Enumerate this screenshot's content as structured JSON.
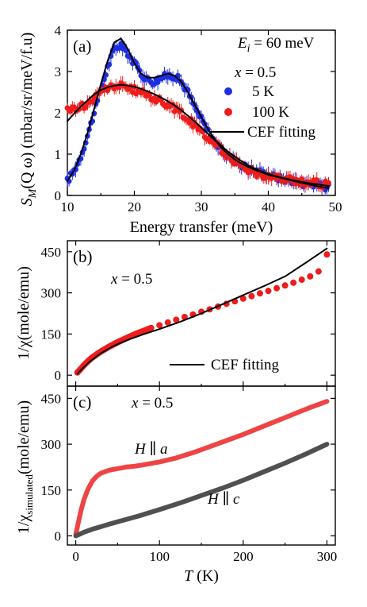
{
  "chart_data": [
    {
      "type": "scatter",
      "panel_label": "(a)",
      "xlabel": "Energy transfer (meV)",
      "ylabel_main": "S",
      "ylabel_sub": "M",
      "ylabel_rest": "(Q ω) (mbar/sr/meV/f.u)",
      "xlim": [
        10,
        50
      ],
      "ylim": [
        0,
        4
      ],
      "xticks": [
        "10",
        "20",
        "30",
        "40",
        "50"
      ],
      "yticks": [
        "0",
        "1",
        "2",
        "3",
        "4"
      ],
      "annotations": {
        "ei_main": "E",
        "ei_sub": "i",
        "ei_rest": " = 60 meV",
        "x_var": "x",
        "x_rest": " = 0.5"
      },
      "legend": [
        {
          "label": "5 K",
          "color": "#1f2ee0",
          "kind": "marker"
        },
        {
          "label": "100 K",
          "color": "#ee1c1c",
          "kind": "marker"
        },
        {
          "label": "CEF fitting",
          "color": "#000000",
          "kind": "line"
        }
      ],
      "series": [
        {
          "name": "5 K",
          "color": "#1f2ee0",
          "x": [
            10,
            11,
            12,
            13,
            14,
            15,
            16,
            17,
            18,
            19,
            20,
            21,
            22,
            23,
            24,
            25,
            26,
            27,
            28,
            29,
            30,
            31,
            32,
            33,
            34,
            35,
            36,
            37,
            38,
            39,
            40,
            41,
            42,
            43,
            44,
            45,
            46,
            47,
            48,
            49
          ],
          "y": [
            0.35,
            0.6,
            0.95,
            1.45,
            2.0,
            2.55,
            3.1,
            3.55,
            3.65,
            3.45,
            3.2,
            2.95,
            2.8,
            2.75,
            2.85,
            2.9,
            2.9,
            2.75,
            2.5,
            2.15,
            1.85,
            1.55,
            1.3,
            1.1,
            0.95,
            0.85,
            0.75,
            0.65,
            0.6,
            0.55,
            0.5,
            0.45,
            0.4,
            0.38,
            0.35,
            0.3,
            0.28,
            0.25,
            0.22,
            0.2
          ]
        },
        {
          "name": "100 K",
          "color": "#ee1c1c",
          "x": [
            10,
            11,
            12,
            13,
            14,
            15,
            16,
            17,
            18,
            19,
            20,
            21,
            22,
            23,
            24,
            25,
            26,
            27,
            28,
            29,
            30,
            31,
            32,
            33,
            34,
            35,
            36,
            37,
            38,
            39,
            40,
            41,
            42,
            43,
            44,
            45,
            46,
            47,
            48,
            49
          ],
          "y": [
            2.05,
            2.1,
            2.15,
            2.2,
            2.35,
            2.5,
            2.6,
            2.65,
            2.65,
            2.6,
            2.55,
            2.5,
            2.42,
            2.35,
            2.28,
            2.2,
            2.1,
            2.0,
            1.85,
            1.7,
            1.55,
            1.4,
            1.25,
            1.1,
            0.95,
            0.82,
            0.72,
            0.62,
            0.55,
            0.5,
            0.45,
            0.42,
            0.4,
            0.38,
            0.35,
            0.33,
            0.32,
            0.3,
            0.28,
            0.3
          ]
        },
        {
          "name": "CEF fitting 5 K",
          "type": "line",
          "color": "#000000",
          "x": [
            10,
            11,
            12,
            13,
            14,
            15,
            16,
            17,
            18,
            19,
            20,
            21,
            22,
            23,
            24,
            25,
            26,
            27,
            28,
            29,
            30,
            31,
            32,
            33,
            34,
            35,
            36,
            37,
            38,
            39,
            40,
            42,
            44,
            46,
            48,
            49
          ],
          "y": [
            0.35,
            0.6,
            1.0,
            1.5,
            2.1,
            2.7,
            3.25,
            3.7,
            3.8,
            3.55,
            3.2,
            2.95,
            2.85,
            2.85,
            2.9,
            2.95,
            2.9,
            2.75,
            2.5,
            2.2,
            1.9,
            1.6,
            1.35,
            1.15,
            1.0,
            0.87,
            0.77,
            0.69,
            0.62,
            0.56,
            0.5,
            0.42,
            0.34,
            0.27,
            0.2,
            0.18
          ]
        },
        {
          "name": "CEF fitting 100 K",
          "type": "line",
          "color": "#000000",
          "x": [
            10,
            11,
            12,
            13,
            14,
            15,
            16,
            17,
            18,
            19,
            20,
            21,
            22,
            23,
            24,
            25,
            26,
            27,
            28,
            29,
            30,
            31,
            32,
            33,
            34,
            35,
            36,
            37,
            38,
            39,
            40,
            42,
            44,
            46,
            48,
            49
          ],
          "y": [
            1.8,
            1.98,
            2.15,
            2.3,
            2.45,
            2.55,
            2.62,
            2.66,
            2.68,
            2.66,
            2.63,
            2.58,
            2.52,
            2.45,
            2.37,
            2.28,
            2.18,
            2.06,
            1.93,
            1.79,
            1.64,
            1.49,
            1.34,
            1.2,
            1.06,
            0.94,
            0.83,
            0.73,
            0.65,
            0.58,
            0.52,
            0.43,
            0.36,
            0.3,
            0.25,
            0.23
          ]
        }
      ]
    },
    {
      "type": "scatter",
      "panel_label": "(b)",
      "ylabel": "1/χ(mole/emu)",
      "xlim": [
        -10,
        310
      ],
      "ylim": [
        -40,
        490
      ],
      "xticks": [],
      "yticks": [
        "0",
        "150",
        "300",
        "450"
      ],
      "annotations": {
        "x_var": "x",
        "x_rest": " = 0.5"
      },
      "legend": [
        {
          "label": "CEF fitting",
          "color": "#000000",
          "kind": "line"
        }
      ],
      "series": [
        {
          "name": "data",
          "color": "#ee1c1c",
          "x": [
            2,
            4,
            6,
            8,
            10,
            12,
            14,
            16,
            18,
            20,
            23,
            26,
            30,
            35,
            40,
            45,
            50,
            55,
            60,
            65,
            70,
            75,
            80,
            85,
            90,
            100,
            110,
            120,
            130,
            140,
            150,
            160,
            170,
            180,
            190,
            200,
            210,
            220,
            230,
            240,
            250,
            260,
            270,
            280,
            290,
            300
          ],
          "y": [
            10,
            16,
            23,
            30,
            37,
            43,
            49,
            55,
            60,
            65,
            71,
            78,
            86,
            95,
            104,
            112,
            120,
            127,
            134,
            141,
            148,
            154,
            160,
            166,
            172,
            182,
            192,
            202,
            212,
            221,
            231,
            240,
            250,
            260,
            269,
            279,
            288,
            298,
            307,
            317,
            327,
            337,
            348,
            360,
            378,
            440
          ]
        },
        {
          "name": "CEF fitting",
          "type": "line",
          "color": "#000000",
          "x": [
            2,
            5,
            10,
            15,
            20,
            30,
            40,
            50,
            60,
            80,
            100,
            125,
            150,
            175,
            200,
            225,
            250,
            275,
            300
          ],
          "y": [
            5,
            15,
            30,
            45,
            57,
            80,
            98,
            113,
            126,
            148,
            168,
            195,
            225,
            258,
            292,
            325,
            360,
            410,
            462
          ]
        }
      ]
    },
    {
      "type": "line",
      "panel_label": "(c)",
      "xlabel_var": "T",
      "xlabel_rest": " (K)",
      "ylabel_main": "1/χ",
      "ylabel_sub": "simulated",
      "ylabel_rest": "(mole/emu)",
      "xlim": [
        -10,
        310
      ],
      "ylim": [
        -30,
        490
      ],
      "xticks": [
        "0",
        "100",
        "200",
        "300"
      ],
      "yticks": [
        "0",
        "150",
        "300",
        "450"
      ],
      "annotations": {
        "x_var": "x",
        "x_rest": " = 0.5"
      },
      "series": [
        {
          "name": "H ∥ a",
          "label_var": "H",
          "label_rest": " ∥ ",
          "label_axis": "a",
          "color": "#ee4444",
          "x": [
            0,
            2,
            4,
            6,
            8,
            10,
            15,
            20,
            25,
            30,
            40,
            50,
            60,
            70,
            80,
            100,
            120,
            140,
            160,
            180,
            200,
            220,
            240,
            260,
            280,
            300
          ],
          "y": [
            5,
            30,
            55,
            80,
            100,
            120,
            155,
            180,
            195,
            205,
            215,
            220,
            225,
            228,
            232,
            242,
            255,
            272,
            292,
            312,
            332,
            354,
            376,
            398,
            420,
            440
          ]
        },
        {
          "name": "H ∥ c",
          "label_var": "H",
          "label_rest": " ∥ ",
          "label_axis": "c",
          "color": "#505050",
          "x": [
            0,
            5,
            10,
            20,
            30,
            40,
            50,
            75,
            100,
            125,
            150,
            175,
            200,
            225,
            250,
            275,
            300
          ],
          "y": [
            0,
            6,
            12,
            22,
            30,
            38,
            46,
            65,
            86,
            108,
            132,
            156,
            182,
            210,
            238,
            268,
            300
          ]
        }
      ]
    }
  ]
}
